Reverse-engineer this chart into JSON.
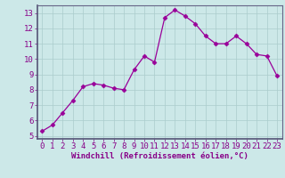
{
  "x": [
    0,
    1,
    2,
    3,
    4,
    5,
    6,
    7,
    8,
    9,
    10,
    11,
    12,
    13,
    14,
    15,
    16,
    17,
    18,
    19,
    20,
    21,
    22,
    23
  ],
  "y": [
    5.3,
    5.7,
    6.5,
    7.3,
    8.2,
    8.4,
    8.3,
    8.1,
    8.0,
    9.3,
    10.2,
    9.8,
    12.7,
    13.2,
    12.8,
    12.3,
    11.5,
    11.0,
    11.0,
    11.5,
    11.0,
    10.3,
    10.2,
    8.9
  ],
  "line_color": "#990099",
  "marker": "D",
  "marker_size": 2.5,
  "bg_color": "#cce8e8",
  "grid_color": "#aacccc",
  "xlabel": "Windchill (Refroidissement éolien,°C)",
  "xlabel_color": "#880088",
  "tick_color": "#880088",
  "spine_color": "#666688",
  "ylim": [
    4.8,
    13.5
  ],
  "xlim": [
    -0.5,
    23.5
  ],
  "yticks": [
    5,
    6,
    7,
    8,
    9,
    10,
    11,
    12,
    13
  ],
  "xticks": [
    0,
    1,
    2,
    3,
    4,
    5,
    6,
    7,
    8,
    9,
    10,
    11,
    12,
    13,
    14,
    15,
    16,
    17,
    18,
    19,
    20,
    21,
    22,
    23
  ],
  "tick_fontsize": 6.5,
  "xlabel_fontsize": 6.5
}
